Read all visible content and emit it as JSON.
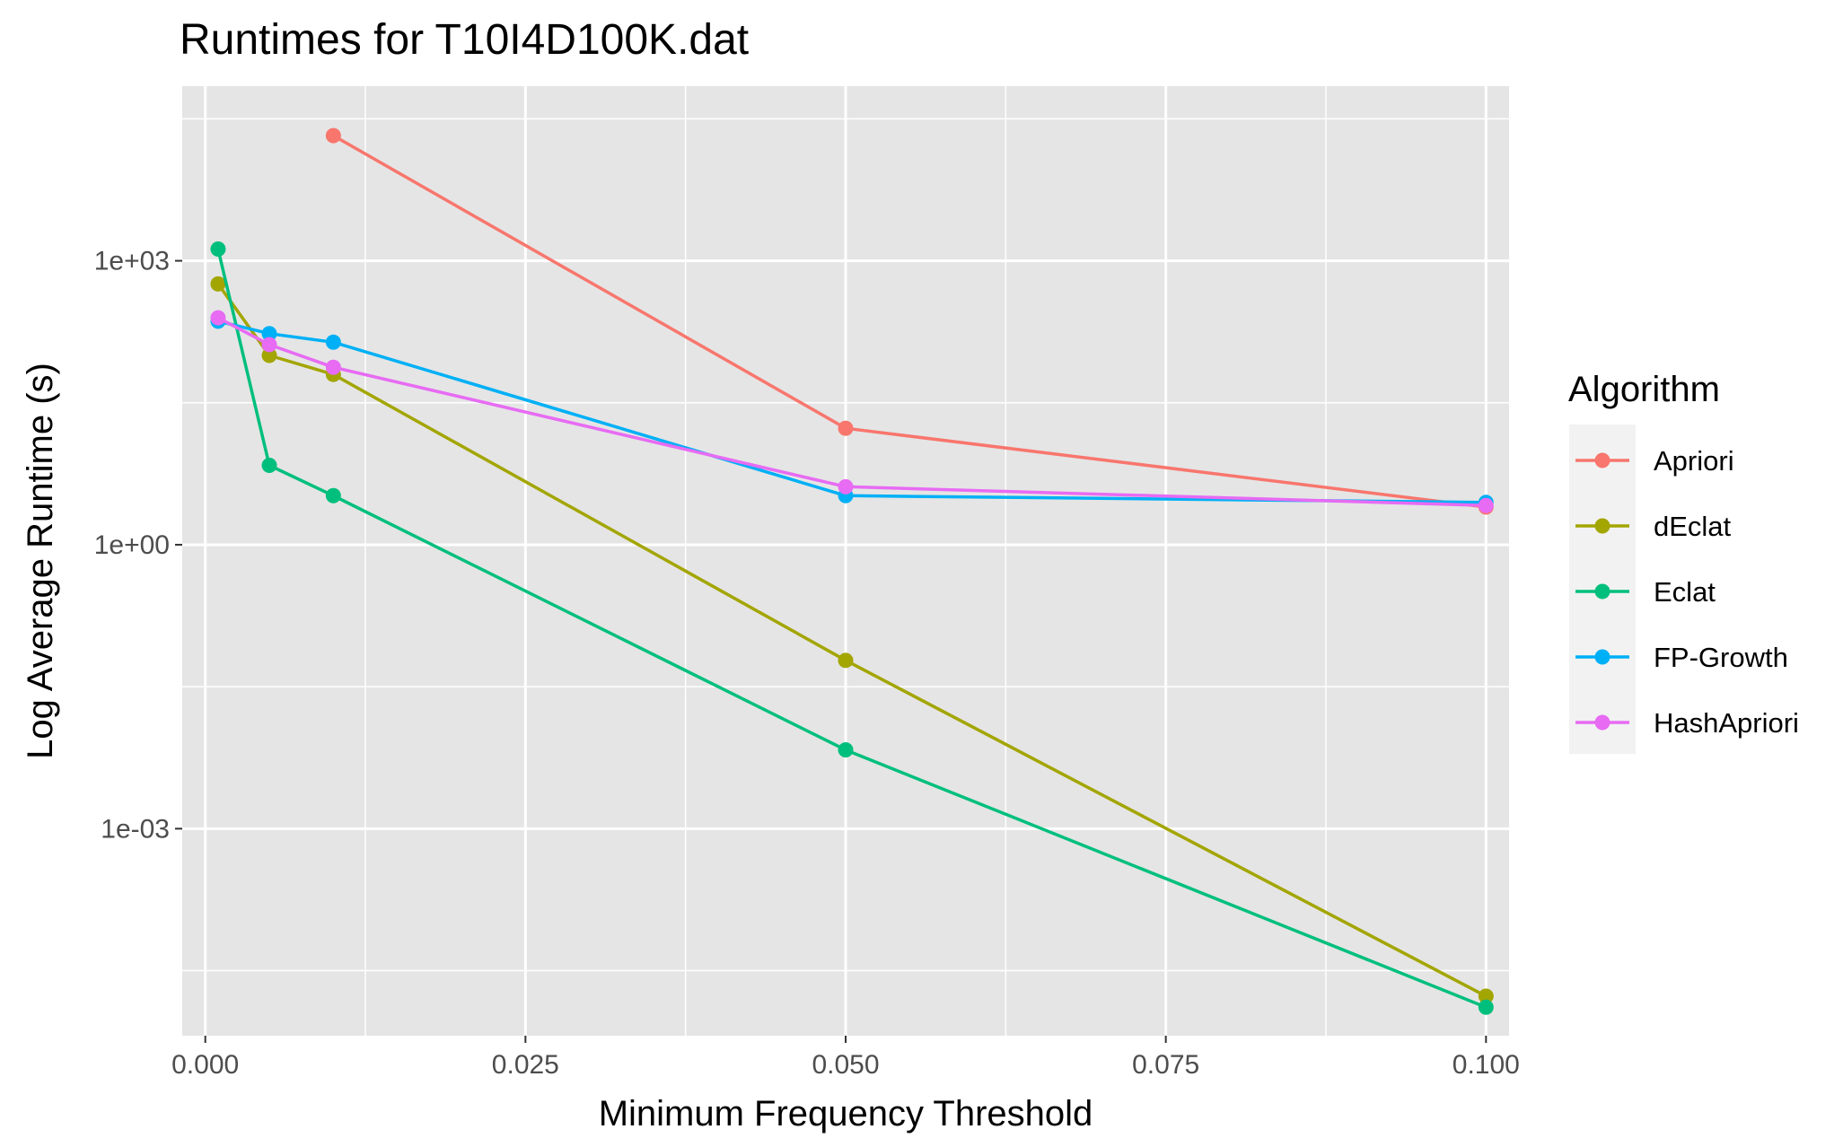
{
  "chart_data": {
    "type": "line",
    "title": "Runtimes for T10I4D100K.dat",
    "xlabel": "Minimum Frequency Threshold",
    "ylabel": "Log Average Runtime (s)",
    "y_scale": "log10",
    "grid": true,
    "legend_title": "Algorithm",
    "legend_position": "right",
    "xlim": [
      -0.0018,
      0.1018
    ],
    "ylim": [
      6.5e-06,
      70000
    ],
    "x_ticks": [
      {
        "value": 0.0,
        "label": "0.000"
      },
      {
        "value": 0.025,
        "label": "0.025"
      },
      {
        "value": 0.05,
        "label": "0.050"
      },
      {
        "value": 0.075,
        "label": "0.075"
      },
      {
        "value": 0.1,
        "label": "0.100"
      }
    ],
    "x_minor_ticks": [
      0.0125,
      0.0375,
      0.0625,
      0.0875
    ],
    "y_ticks": [
      {
        "value": 1000,
        "label": "1e+03"
      },
      {
        "value": 1,
        "label": "1e+00"
      },
      {
        "value": 0.001,
        "label": "1e-03"
      }
    ],
    "y_minor_ticks": [
      31622.8,
      31.6228,
      0.0316228,
      3.16228e-05
    ],
    "series": [
      {
        "name": "Apriori",
        "color": "#F8766D",
        "points": [
          {
            "x": 0.01,
            "y": 21000
          },
          {
            "x": 0.05,
            "y": 17
          },
          {
            "x": 0.1,
            "y": 2.5
          }
        ]
      },
      {
        "name": "dEclat",
        "color": "#A3A500",
        "points": [
          {
            "x": 0.001,
            "y": 570
          },
          {
            "x": 0.005,
            "y": 100
          },
          {
            "x": 0.01,
            "y": 63
          },
          {
            "x": 0.05,
            "y": 0.06
          },
          {
            "x": 0.1,
            "y": 1.7e-05
          }
        ]
      },
      {
        "name": "Eclat",
        "color": "#00BF7D",
        "points": [
          {
            "x": 0.001,
            "y": 1330
          },
          {
            "x": 0.005,
            "y": 6.9
          },
          {
            "x": 0.01,
            "y": 3.3
          },
          {
            "x": 0.05,
            "y": 0.0068
          },
          {
            "x": 0.1,
            "y": 1.3e-05
          }
        ]
      },
      {
        "name": "FP-Growth",
        "color": "#00B0F6",
        "points": [
          {
            "x": 0.001,
            "y": 230
          },
          {
            "x": 0.005,
            "y": 170
          },
          {
            "x": 0.01,
            "y": 138
          },
          {
            "x": 0.05,
            "y": 3.3
          },
          {
            "x": 0.1,
            "y": 2.8
          }
        ]
      },
      {
        "name": "HashApriori",
        "color": "#E76BF3",
        "points": [
          {
            "x": 0.001,
            "y": 250
          },
          {
            "x": 0.005,
            "y": 130
          },
          {
            "x": 0.01,
            "y": 75
          },
          {
            "x": 0.05,
            "y": 4.1
          },
          {
            "x": 0.1,
            "y": 2.6
          }
        ]
      }
    ]
  }
}
